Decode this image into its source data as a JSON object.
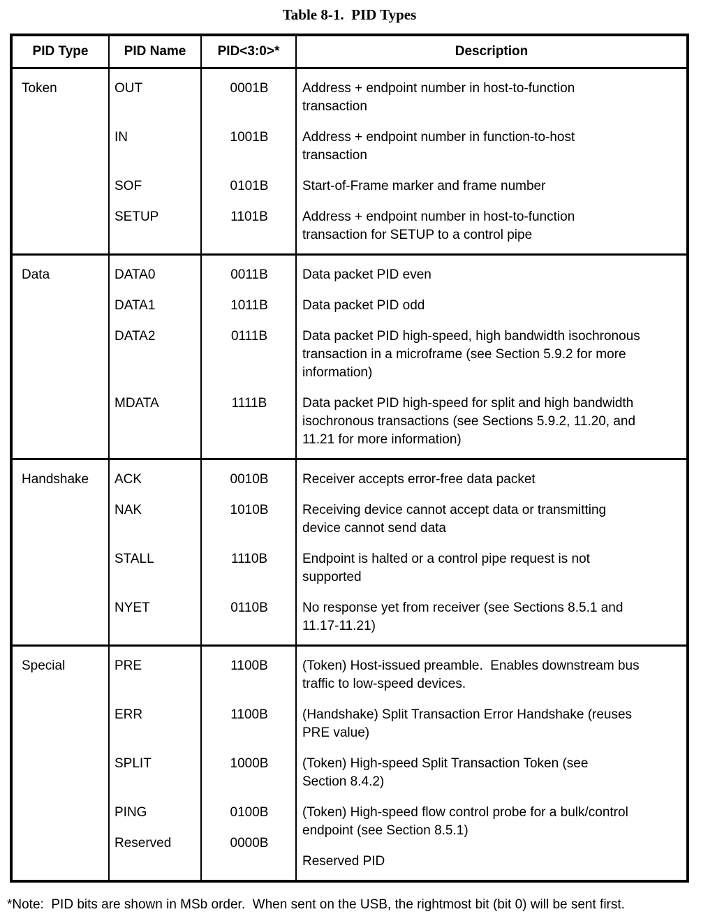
{
  "title": "Table 8-1.  PID Types",
  "table": {
    "columns": [
      "PID Type",
      "PID Name",
      "PID<3:0>*",
      "Description"
    ],
    "sections": [
      {
        "type": "Token",
        "entries": [
          {
            "name": "OUT",
            "code": "0001B",
            "description": "Address + endpoint number in host-to-function\ntransaction"
          },
          {
            "name": "IN",
            "code": "1001B",
            "description": "Address + endpoint number in function-to-host\ntransaction"
          },
          {
            "name": "SOF",
            "code": "0101B",
            "description": "Start-of-Frame marker and frame number"
          },
          {
            "name": "SETUP",
            "code": "1101B",
            "description": "Address + endpoint number in host-to-function\ntransaction for SETUP to a control pipe"
          }
        ]
      },
      {
        "type": "Data",
        "entries": [
          {
            "name": "DATA0",
            "code": "0011B",
            "description": "Data packet PID even"
          },
          {
            "name": "DATA1",
            "code": "1011B",
            "description": "Data packet PID odd"
          },
          {
            "name": "DATA2",
            "code": "0111B",
            "description": "Data packet PID high-speed, high bandwidth isochronous\ntransaction in a microframe (see Section 5.9.2 for more\ninformation)"
          },
          {
            "name": "MDATA",
            "code": "1111B",
            "description": "Data packet PID high-speed for split and high bandwidth\nisochronous transactions (see Sections 5.9.2, 11.20, and\n11.21 for more information)"
          }
        ]
      },
      {
        "type": "Handshake",
        "entries": [
          {
            "name": "ACK",
            "code": "0010B",
            "description": "Receiver accepts error-free data packet"
          },
          {
            "name": "NAK",
            "code": "1010B",
            "description": "Receiving device cannot accept data or transmitting\ndevice cannot send data"
          },
          {
            "name": "STALL",
            "code": "1110B",
            "description": "Endpoint is halted or a control pipe request is not\nsupported"
          },
          {
            "name": "NYET",
            "code": "0110B",
            "description": "No response yet from receiver (see Sections 8.5.1 and\n11.17-11.21)"
          }
        ]
      },
      {
        "type": "Special",
        "entries": [
          {
            "name": "PRE",
            "code": "1100B",
            "description": "(Token) Host-issued preamble.  Enables downstream bus\ntraffic to low-speed devices."
          },
          {
            "name": "ERR",
            "code": "1100B",
            "description": "(Handshake) Split Transaction Error Handshake (reuses\nPRE value)"
          },
          {
            "name": "SPLIT",
            "code": "1000B",
            "description": "(Token) High-speed Split Transaction Token (see\nSection 8.4.2)"
          },
          {
            "name": "PING",
            "code": "0100B",
            "description": "(Token) High-speed flow control probe for a bulk/control\nendpoint (see Section 8.5.1)"
          },
          {
            "name": "Reserved",
            "code": "0000B",
            "description": "Reserved PID"
          }
        ]
      }
    ]
  },
  "footnote": "*Note:  PID bits are shown in MSb order.  When sent on the USB, the rightmost bit (bit 0) will be sent first."
}
